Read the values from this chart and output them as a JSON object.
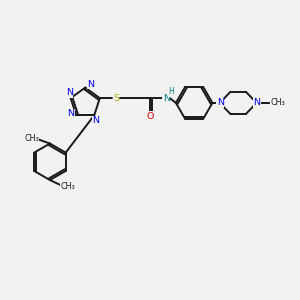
{
  "bg_color": "#f2f2f2",
  "bond_color": "#1a1a1a",
  "N_color": "#0000ee",
  "O_color": "#dd0000",
  "S_color": "#aaaa00",
  "NH_color": "#008080",
  "figsize": [
    3.0,
    3.0
  ],
  "dpi": 100,
  "xlim": [
    0,
    10
  ],
  "ylim": [
    0,
    10
  ]
}
